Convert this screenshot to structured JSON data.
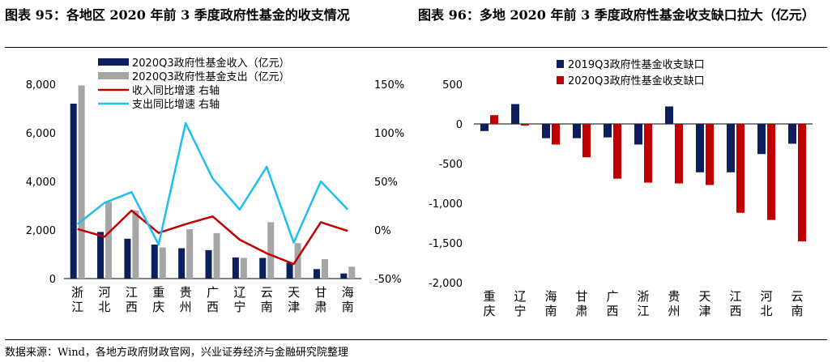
{
  "figure_left": {
    "title": "图表 95：各地区 2020 年前 3 季度政府性基金的收支情况",
    "legend": [
      {
        "label": "2020Q3政府性基金收入（亿元）",
        "kind": "bar",
        "color": "#0c1f5c"
      },
      {
        "label": "2020Q3政府性基金支出（亿元）",
        "kind": "bar",
        "color": "#a6a6a6"
      },
      {
        "label": "收入同比增速 右轴",
        "kind": "line",
        "color": "#c00000"
      },
      {
        "label": "支出同比增速 右轴",
        "kind": "line",
        "color": "#1fbdf2"
      }
    ]
  },
  "figure_right": {
    "title": "图表 96：多地 2020 年前 3 季度政府性基金收支缺口拉大（亿元）",
    "legend": [
      {
        "label": "2019Q3政府性基金收支缺口",
        "color": "#0c1f5c"
      },
      {
        "label": "2020Q3政府性基金收支缺口",
        "color": "#c00000"
      }
    ]
  },
  "source": "数据来源：Wind，各地方政府财政官网，兴业证券经济与金融研究院整理",
  "chart_data": [
    {
      "type": "bar",
      "categories": [
        "浙江",
        "河北",
        "江西",
        "重庆",
        "贵州",
        "广西",
        "辽宁",
        "云南",
        "天津",
        "甘肃",
        "海南"
      ],
      "series": [
        {
          "name": "2020Q3政府性基金收入（亿元）",
          "kind": "bar",
          "axis": "left",
          "values": [
            7200,
            1920,
            1640,
            1400,
            1250,
            1170,
            870,
            850,
            650,
            390,
            210
          ]
        },
        {
          "name": "2020Q3政府性基金支出（亿元）",
          "kind": "bar",
          "axis": "left",
          "values": [
            7950,
            3150,
            2800,
            1280,
            2030,
            1870,
            850,
            2320,
            1460,
            800,
            490
          ]
        },
        {
          "name": "收入同比增速 右轴",
          "kind": "line",
          "axis": "right",
          "values": [
            1,
            -7,
            20,
            -3,
            6,
            14,
            -10,
            -24,
            -35,
            8,
            -1
          ]
        },
        {
          "name": "支出同比增速 右轴",
          "kind": "line",
          "axis": "right",
          "values": [
            6,
            28,
            39,
            -15,
            110,
            53,
            21,
            65,
            -13,
            50,
            21
          ]
        }
      ],
      "y_left": {
        "min": 0,
        "max": 8000,
        "ticks": [
          0,
          2000,
          4000,
          6000,
          8000
        ],
        "tick_labels": [
          "0",
          "2,000",
          "4,000",
          "6,000",
          "8,000"
        ]
      },
      "y_right": {
        "min": -50,
        "max": 150,
        "ticks": [
          -50,
          0,
          50,
          100,
          150
        ],
        "tick_labels": [
          "-50%",
          "0%",
          "50%",
          "100%",
          "150%"
        ]
      },
      "legend_position": "top-left",
      "grid": false
    },
    {
      "type": "bar",
      "categories": [
        "重庆",
        "辽宁",
        "海南",
        "甘肃",
        "广西",
        "浙江",
        "贵州",
        "天津",
        "江西",
        "河北",
        "云南"
      ],
      "series": [
        {
          "name": "2019Q3政府性基金收支缺口",
          "values": [
            -90,
            250,
            -180,
            -180,
            -170,
            -260,
            220,
            -610,
            -610,
            -380,
            -250
          ]
        },
        {
          "name": "2020Q3政府性基金收支缺口",
          "values": [
            110,
            -20,
            -260,
            -420,
            -690,
            -740,
            -750,
            -770,
            -1120,
            -1210,
            -1480
          ]
        }
      ],
      "y": {
        "min": -2000,
        "max": 500,
        "ticks": [
          500,
          0,
          -500,
          -1000,
          -1500,
          -2000
        ],
        "tick_labels": [
          "500",
          "0",
          "-500",
          "-1,000",
          "-1,500",
          "-2,000"
        ]
      },
      "legend_position": "top-center",
      "grid": false
    }
  ]
}
